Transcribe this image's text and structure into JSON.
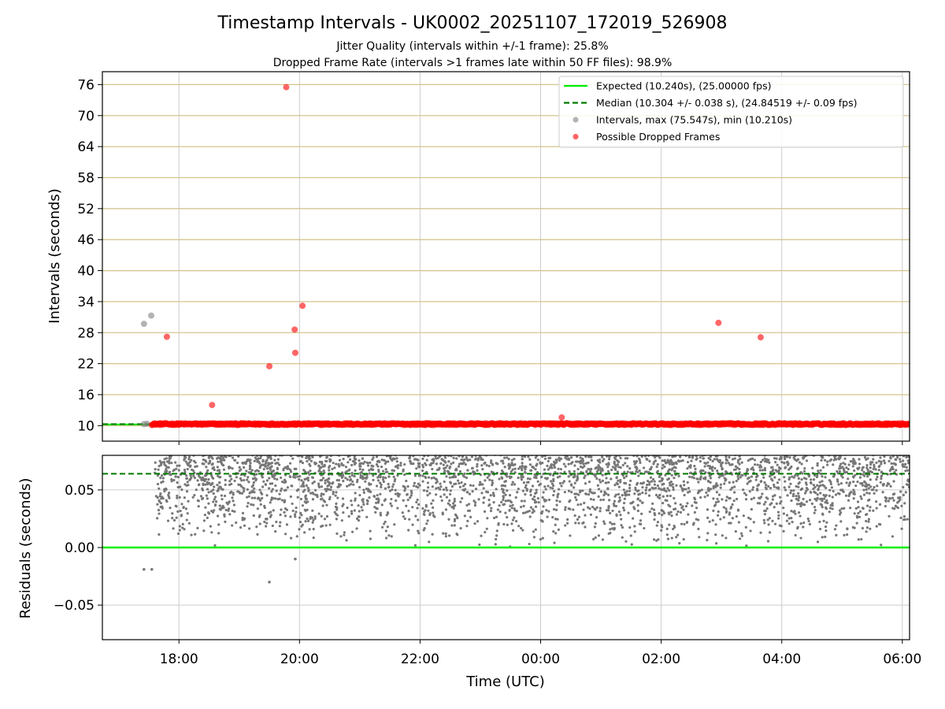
{
  "chart_data": {
    "type": "scatter",
    "title": "Timestamp Intervals - UK0002_20251107_172019_526908",
    "subtitle_1": "Jitter Quality (intervals within +/-1 frame): 25.8%",
    "subtitle_2": "Dropped Frame Rate (intervals >1 frames late within 50 FF files): 98.9%",
    "xlabel": "Time (UTC)",
    "x_tick_labels": [
      "18:00",
      "20:00",
      "22:00",
      "00:00",
      "02:00",
      "04:00",
      "06:00"
    ],
    "x_range_hours": [
      16.73,
      30.12
    ],
    "top_panel": {
      "ylabel": "Intervals (seconds)",
      "ylim": [
        7.0,
        78.5
      ],
      "y_ticks": [
        10,
        16,
        22,
        28,
        34,
        40,
        46,
        52,
        58,
        64,
        70,
        76
      ],
      "gridlines": "horizontal tan at each tick, vertical gray at each x tick",
      "expected_interval": 10.24,
      "median_interval": 10.304,
      "dropped_band": {
        "from_hours": 17.55,
        "to_hours": 30.12,
        "value": 10.3
      },
      "intervals_gray": [
        {
          "t": 17.42,
          "v": 29.7
        },
        {
          "t": 17.54,
          "v": 31.3
        },
        {
          "t": 17.42,
          "v": 10.3
        },
        {
          "t": 17.47,
          "v": 10.35
        }
      ],
      "dropped_frames_red": [
        {
          "t": 17.8,
          "v": 27.2
        },
        {
          "t": 18.55,
          "v": 14.0
        },
        {
          "t": 19.5,
          "v": 21.5
        },
        {
          "t": 19.78,
          "v": 75.5
        },
        {
          "t": 19.92,
          "v": 28.6
        },
        {
          "t": 19.93,
          "v": 24.1
        },
        {
          "t": 20.05,
          "v": 33.2
        },
        {
          "t": 24.35,
          "v": 11.6
        },
        {
          "t": 26.95,
          "v": 29.9
        },
        {
          "t": 27.65,
          "v": 27.1
        }
      ]
    },
    "bottom_panel": {
      "ylabel": "Residuals (seconds)",
      "ylim": [
        -0.08,
        0.08
      ],
      "y_ticks": [
        0.05,
        0.0,
        -0.05
      ],
      "y_tick_labels": [
        "0.05",
        "0.00",
        "−0.05"
      ],
      "expected_residual": 0.0,
      "median_residual": 0.064,
      "scatter_density": "dense cloud of residuals between 0.00 and 0.08 from 17.6h to 30.1h",
      "outliers": [
        {
          "t": 17.42,
          "v": -0.019
        },
        {
          "t": 17.55,
          "v": -0.019
        },
        {
          "t": 19.5,
          "v": -0.03
        },
        {
          "t": 19.93,
          "v": -0.01
        }
      ]
    },
    "legend": {
      "position": "top-right",
      "entries": [
        {
          "label": "Expected (10.240s), (25.00000 fps)",
          "style": "solid-line",
          "color": "#00ee00"
        },
        {
          "label": "Median (10.304 +/- 0.038 s), (24.84519 +/- 0.09 fps)",
          "style": "dashed-line",
          "color": "#007a00"
        },
        {
          "label": "Intervals, max (75.547s), min (10.210s)",
          "style": "marker",
          "color": "#808080"
        },
        {
          "label": "Possible Dropped Frames",
          "style": "marker",
          "color": "#ff0000"
        }
      ]
    },
    "colors": {
      "expected": "#00ee00",
      "median": "#007a00",
      "intervals": "#808080",
      "dropped": "#ff0000",
      "hgrid": "#d4c48f",
      "vgrid": "#cccccc",
      "residual_points": "#777777"
    }
  }
}
